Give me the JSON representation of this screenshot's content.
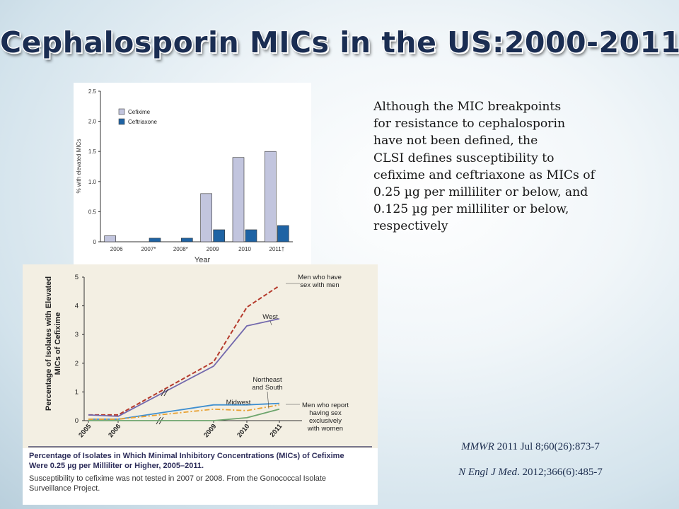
{
  "slide": {
    "title": "Cephalosporin MICs in the US:2000-2011",
    "paragraph_lines": [
      "Although the MIC breakpoints",
      "for resistance to cephalosporin",
      "have not been defined, the",
      "CLSI defines susceptibility to",
      "cefixime and ceftriaxone as MICs of",
      "0.25 µg per milliliter or below, and",
      "0.125 µg per milliliter or below,",
      "respectively"
    ],
    "citation1": {
      "journal": "MMWR",
      "detail": " 2011 Jul 8;60(26):873-7"
    },
    "citation2": {
      "journal": "N Engl J Med",
      "detail": ". 2012;366(6):485-7"
    }
  },
  "colors": {
    "cefixime": "#c2c5de",
    "ceftriaxone": "#1e63a4",
    "msm": "#b53a2c",
    "west": "#7369ad",
    "midwest": "#3f8fd0",
    "northeast_south": "#e8a030",
    "msw": "#6da56d",
    "chart2_bg": "#f3efe3",
    "caption_title": "#2d2d5a"
  },
  "chart_data": [
    {
      "type": "bar",
      "categories": [
        "2006",
        "2007*",
        "2008*",
        "2009",
        "2010",
        "2011†"
      ],
      "series": [
        {
          "name": "Cefixime",
          "values": [
            0.1,
            0,
            0,
            0.8,
            1.4,
            1.5
          ]
        },
        {
          "name": "Ceftriaxone",
          "values": [
            0,
            0.06,
            0.06,
            0.2,
            0.2,
            0.27
          ]
        }
      ],
      "xlabel": "Year",
      "ylabel": "% with elevated MICs",
      "ylim": [
        0,
        2.5
      ],
      "yticks": [
        "0",
        "0.5",
        "1.0",
        "1.5",
        "2.0",
        "2.5"
      ],
      "legend": "top-left",
      "grid": false
    },
    {
      "type": "line",
      "x": [
        "2005",
        "2006",
        "2009",
        "2010",
        "2011"
      ],
      "series": [
        {
          "name": "Men who have sex with men",
          "values": [
            0.2,
            0.2,
            2.05,
            3.95,
            4.7
          ]
        },
        {
          "name": "West",
          "values": [
            0.2,
            0.15,
            1.9,
            3.3,
            3.55
          ]
        },
        {
          "name": "Midwest",
          "values": [
            0.05,
            0.05,
            0.55,
            0.55,
            0.6
          ]
        },
        {
          "name": "Northeast and South",
          "values": [
            0.05,
            0.05,
            0.4,
            0.35,
            0.55
          ]
        },
        {
          "name": "Men who report having sex exclusively with women",
          "values": [
            0.0,
            0.0,
            0.0,
            0.1,
            0.4
          ]
        }
      ],
      "series_labels": {
        "msm": [
          "Men who have",
          "sex with men"
        ],
        "west": "West",
        "northeast_south": [
          "Northeast",
          "and South"
        ],
        "midwest": "Midwest",
        "msw": [
          "Men who report",
          "having sex",
          "exclusively",
          "with women"
        ]
      },
      "ylabel_lines": [
        "Percentage of Isolates with Elevated",
        "MICs of Cefixime"
      ],
      "ylim": [
        0,
        5
      ],
      "yticks": [
        "0",
        "1",
        "2",
        "3",
        "4",
        "5"
      ],
      "grid": false,
      "caption_title_lines": [
        "Percentage of Isolates in Which Minimal Inhibitory Concentrations (MICs) of Cefixime",
        "Were 0.25 µg per Milliliter or Higher, 2005–2011."
      ],
      "caption_lines": [
        "Susceptibility to cefixime was not tested in 2007 or 2008. From the Gonococcal Isolate",
        "Surveillance Project."
      ]
    }
  ]
}
